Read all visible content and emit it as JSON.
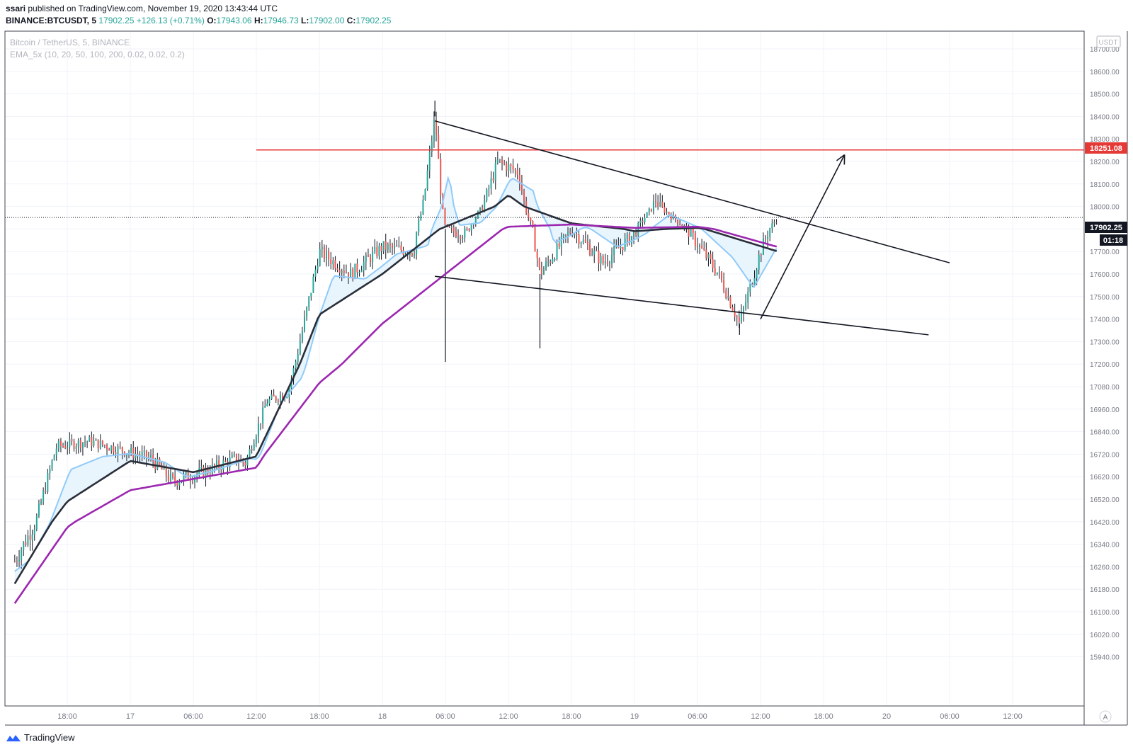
{
  "header": {
    "author": "ssari",
    "published_text": "published on TradingView.com, November 19, 2020 13:43:44 UTC",
    "symbol": "BINANCE:BTCUSDT, 5",
    "last": "17902.25",
    "change": "+126.13 (+0.71%)",
    "o_label": "O:",
    "o_value": "17943.06",
    "h_label": "H:",
    "h_value": "17946.73",
    "l_label": "L:",
    "l_value": "17902.00",
    "c_label": "C:",
    "c_value": "17902.25"
  },
  "legend": {
    "title": "Bitcoin / TetherUS, 5, BINANCE",
    "indicator": "EMA_5x (10, 20, 50, 100, 200, 0.02, 0.02, 0.2)"
  },
  "axis": {
    "currency": "USDT",
    "price_ticks": [
      "18700.00",
      "18600.00",
      "18500.00",
      "18400.00",
      "18300.00",
      "18200.00",
      "18100.00",
      "18000.00",
      "17800.00",
      "17700.00",
      "17600.00",
      "17500.00",
      "17400.00",
      "17300.00",
      "17200.00",
      "17080.00",
      "16960.00",
      "16840.00",
      "16720.00",
      "16620.00",
      "16520.00",
      "16420.00",
      "16340.00",
      "16260.00",
      "16180.00",
      "16100.00",
      "16020.00",
      "15940.00"
    ],
    "time_ticks": [
      "18:00",
      "17",
      "06:00",
      "12:00",
      "18:00",
      "18",
      "06:00",
      "12:00",
      "18:00",
      "19",
      "06:00",
      "12:00",
      "18:00",
      "20",
      "06:00",
      "12:00"
    ],
    "resistance_label": "18251.08",
    "last_price_label": "17902.25",
    "countdown_label": "01:18",
    "auto_label": "A"
  },
  "colors": {
    "resistance": "#e53935",
    "ema200": "#9c27b0",
    "ema100": "#2a2e39",
    "ema50": "#90caf9",
    "fill": "#e3f2fd",
    "up": "#26a69a",
    "down": "#ef5350"
  },
  "footer": {
    "brand": "TradingView"
  },
  "chart_data": {
    "type": "line",
    "symbol": "BTCUSDT",
    "resistance": 18251.08,
    "last": 17902.25,
    "ylim": [
      15900,
      18750
    ],
    "close_path": [
      {
        "t": "Nov16 13:00",
        "p": 16280
      },
      {
        "t": "Nov16 15:00",
        "p": 16420
      },
      {
        "t": "Nov16 17:00",
        "p": 16760
      },
      {
        "t": "Nov16 20:00",
        "p": 16790
      },
      {
        "t": "Nov17 02:00",
        "p": 16700
      },
      {
        "t": "Nov17 04:00",
        "p": 16600
      },
      {
        "t": "Nov17 07:00",
        "p": 16640
      },
      {
        "t": "Nov17 10:00",
        "p": 16700
      },
      {
        "t": "Nov17 11:00",
        "p": 16680
      },
      {
        "t": "Nov17 13:00",
        "p": 17000
      },
      {
        "t": "Nov17 15:00",
        "p": 17050
      },
      {
        "t": "Nov17 18:00",
        "p": 17700
      },
      {
        "t": "Nov17 21:00",
        "p": 17600
      },
      {
        "t": "Nov18 00:00",
        "p": 17720
      },
      {
        "t": "Nov18 03:00",
        "p": 17700
      },
      {
        "t": "Nov18 05:00",
        "p": 18400
      },
      {
        "t": "Nov18 06:00",
        "p": 17800
      },
      {
        "t": "Nov18 08:00",
        "p": 17780
      },
      {
        "t": "Nov18 11:00",
        "p": 18200
      },
      {
        "t": "Nov18 13:00",
        "p": 18150
      },
      {
        "t": "Nov18 15:00",
        "p": 17600
      },
      {
        "t": "Nov18 18:00",
        "p": 17800
      },
      {
        "t": "Nov18 21:00",
        "p": 17650
      },
      {
        "t": "Nov19 00:00",
        "p": 17780
      },
      {
        "t": "Nov19 02:00",
        "p": 18030
      },
      {
        "t": "Nov19 05:00",
        "p": 17800
      },
      {
        "t": "Nov19 08:00",
        "p": 17600
      },
      {
        "t": "Nov19 10:00",
        "p": 17380
      },
      {
        "t": "Nov19 12:00",
        "p": 17700
      },
      {
        "t": "Nov19 13:40",
        "p": 17902.25
      }
    ],
    "ema200": [
      {
        "t": "Nov16 13:00",
        "p": 16130
      },
      {
        "t": "Nov16 18:00",
        "p": 16400
      },
      {
        "t": "Nov17 00:00",
        "p": 16560
      },
      {
        "t": "Nov17 06:00",
        "p": 16610
      },
      {
        "t": "Nov17 12:00",
        "p": 16660
      },
      {
        "t": "Nov17 18:00",
        "p": 17100
      },
      {
        "t": "Nov18 00:00",
        "p": 17380
      },
      {
        "t": "Nov18 06:00",
        "p": 17600
      },
      {
        "t": "Nov18 12:00",
        "p": 17820
      },
      {
        "t": "Nov18 18:00",
        "p": 17840
      },
      {
        "t": "Nov19 00:00",
        "p": 17810
      },
      {
        "t": "Nov19 06:00",
        "p": 17820
      },
      {
        "t": "Nov19 13:40",
        "p": 17720
      }
    ],
    "ema100": [
      {
        "t": "Nov16 13:00",
        "p": 16200
      },
      {
        "t": "Nov16 18:00",
        "p": 16510
      },
      {
        "t": "Nov17 00:00",
        "p": 16690
      },
      {
        "t": "Nov17 06:00",
        "p": 16640
      },
      {
        "t": "Nov17 12:00",
        "p": 16710
      },
      {
        "t": "Nov17 18:00",
        "p": 17420
      },
      {
        "t": "Nov18 00:00",
        "p": 17600
      },
      {
        "t": "Nov18 06:00",
        "p": 17820
      },
      {
        "t": "Nov18 12:00",
        "p": 18050
      },
      {
        "t": "Nov18 18:00",
        "p": 17850
      },
      {
        "t": "Nov19 00:00",
        "p": 17790
      },
      {
        "t": "Nov19 06:00",
        "p": 17810
      },
      {
        "t": "Nov19 13:40",
        "p": 17700
      }
    ],
    "trendlines": [
      {
        "name": "upper",
        "from": {
          "t": "Nov18 05:00",
          "p": 18380
        },
        "to": {
          "t": "Nov20 06:00",
          "p": 17650
        }
      },
      {
        "name": "lower",
        "from": {
          "t": "Nov18 05:00",
          "p": 17590
        },
        "to": {
          "t": "Nov20 04:00",
          "p": 17330
        }
      },
      {
        "name": "arrow",
        "from": {
          "t": "Nov19 12:00",
          "p": 17400
        },
        "to": {
          "t": "Nov19 20:00",
          "p": 18230
        }
      }
    ]
  }
}
